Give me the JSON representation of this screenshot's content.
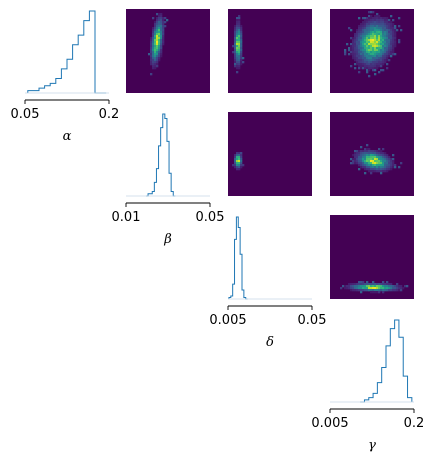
{
  "chart_data": {
    "type": "corner",
    "parameters": [
      {
        "symbol": "α",
        "tick_labels": [
          "0.05",
          "0.2"
        ],
        "range": [
          0.05,
          0.2
        ]
      },
      {
        "symbol": "β",
        "tick_labels": [
          "0.01",
          "0.05"
        ],
        "range": [
          0.01,
          0.05
        ]
      },
      {
        "symbol": "δ",
        "tick_labels": [
          "0.005",
          "0.05"
        ],
        "range": [
          0.005,
          0.05
        ]
      },
      {
        "symbol": "γ",
        "tick_labels": [
          "0.005",
          "0.2"
        ],
        "range": [
          0.005,
          0.2
        ]
      }
    ],
    "diagonal_histograms": [
      {
        "param": "α",
        "type": "step",
        "color": "#1f77b4",
        "bin_centers": [
          0.06,
          0.07,
          0.08,
          0.09,
          0.1,
          0.11,
          0.12,
          0.13,
          0.14,
          0.15,
          0.16,
          0.17,
          0.18,
          0.19
        ],
        "counts": [
          1,
          1,
          2,
          3,
          4,
          6,
          10,
          14,
          20,
          24,
          30,
          34,
          0,
          0
        ]
      },
      {
        "param": "β",
        "type": "step",
        "color": "#1f77b4",
        "bin_centers": [
          0.02,
          0.021,
          0.022,
          0.023,
          0.024,
          0.025,
          0.026,
          0.027,
          0.028,
          0.029,
          0.03,
          0.031,
          0.032,
          0.033
        ],
        "counts": [
          0,
          1,
          1,
          2,
          6,
          12,
          22,
          30,
          36,
          34,
          24,
          10,
          2,
          0
        ]
      },
      {
        "param": "δ",
        "type": "step",
        "color": "#1f77b4",
        "bin_centers": [
          0.006,
          0.007,
          0.008,
          0.009,
          0.01,
          0.011,
          0.012,
          0.013,
          0.014,
          0.015
        ],
        "counts": [
          1,
          2,
          10,
          40,
          55,
          48,
          30,
          6,
          1,
          0
        ]
      },
      {
        "param": "γ",
        "type": "step",
        "color": "#1f77b4",
        "bin_centers": [
          0.08,
          0.09,
          0.1,
          0.11,
          0.12,
          0.13,
          0.14,
          0.15,
          0.16,
          0.17,
          0.18,
          0.19
        ],
        "counts": [
          0,
          1,
          2,
          4,
          9,
          16,
          26,
          34,
          38,
          30,
          12,
          2
        ]
      }
    ],
    "pair_density_panels": [
      {
        "row": 0,
        "col": 1,
        "x": "β",
        "y": "α",
        "colormap": "viridis",
        "peak": [
          0.37,
          0.38
        ],
        "spread": [
          0.04,
          0.13
        ],
        "tilt": -0.55
      },
      {
        "row": 0,
        "col": 2,
        "x": "δ",
        "y": "α",
        "colormap": "viridis",
        "peak": [
          0.12,
          0.42
        ],
        "spread": [
          0.025,
          0.13
        ],
        "tilt": 0
      },
      {
        "row": 0,
        "col": 3,
        "x": "γ",
        "y": "α",
        "colormap": "viridis",
        "peak": [
          0.52,
          0.4
        ],
        "spread": [
          0.12,
          0.14
        ],
        "tilt": -0.2
      },
      {
        "row": 1,
        "col": 2,
        "x": "δ",
        "y": "β",
        "colormap": "viridis",
        "peak": [
          0.12,
          0.58
        ],
        "spread": [
          0.025,
          0.05
        ],
        "tilt": 0
      },
      {
        "row": 1,
        "col": 3,
        "x": "γ",
        "y": "β",
        "colormap": "viridis",
        "peak": [
          0.52,
          0.58
        ],
        "spread": [
          0.11,
          0.06
        ],
        "tilt": 0.3
      },
      {
        "row": 2,
        "col": 3,
        "x": "γ",
        "y": "δ",
        "colormap": "viridis",
        "peak": [
          0.52,
          0.86
        ],
        "spread": [
          0.16,
          0.025
        ],
        "tilt": 0.1
      }
    ],
    "grid": false,
    "legend": "none"
  },
  "colors": {
    "histogram_line": "#1f77b4",
    "density_low": "#440154",
    "density_high": "#fde725",
    "spine": "#000000"
  }
}
